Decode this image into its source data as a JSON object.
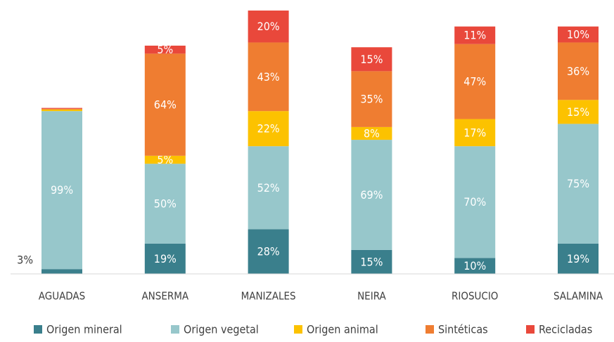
{
  "chart_data": {
    "type": "stacked_bar",
    "categories": [
      "AGUADAS",
      "ANSERMA",
      "MANIZALES",
      "NEIRA",
      "RIOSUCIO",
      "SALAMINA"
    ],
    "series": [
      {
        "name": "Origen mineral",
        "color": "#3a7f8c",
        "values": [
          3,
          19,
          28,
          15,
          10,
          19
        ],
        "value_labels": [
          "3%",
          "19%",
          "28%",
          "15%",
          "10%",
          "19%"
        ]
      },
      {
        "name": "Origen vegetal",
        "color": "#97c7cb",
        "values": [
          99,
          50,
          52,
          69,
          70,
          75
        ],
        "value_labels": [
          "99%",
          "50%",
          "52%",
          "69%",
          "70%",
          "75%"
        ]
      },
      {
        "name": "Origen animal",
        "color": "#fcc200",
        "values": [
          1,
          5,
          22,
          8,
          17,
          15
        ],
        "value_labels": [
          null,
          "5%",
          "22%",
          "8%",
          "17%",
          "15%"
        ]
      },
      {
        "name": "Sintéticas",
        "color": "#ef7d31",
        "values": [
          0.5,
          64,
          43,
          35,
          47,
          36
        ],
        "value_labels": [
          null,
          "64%",
          "43%",
          "35%",
          "47%",
          "36%"
        ]
      },
      {
        "name": "Recicladas",
        "color": "#e9483b",
        "values": [
          0.5,
          5,
          20,
          15,
          11,
          10
        ],
        "value_labels": [
          null,
          "5%",
          "20%",
          "15%",
          "11%",
          "10%"
        ]
      }
    ],
    "legend": "bottom"
  }
}
